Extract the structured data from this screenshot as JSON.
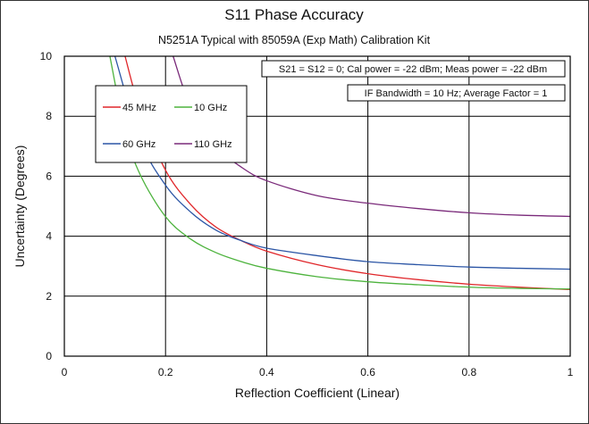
{
  "chart_data": {
    "type": "line",
    "title": "S11 Phase Accuracy",
    "subtitle": "N5251A Typical with 85059A (Exp Math) Calibration Kit",
    "xlabel": "Reflection Coefficient (Linear)",
    "ylabel": "Uncertainty (Degrees)",
    "xlim": [
      0,
      1
    ],
    "ylim": [
      0,
      10
    ],
    "x_ticks": [
      "0",
      "0.2",
      "0.4",
      "0.6",
      "0.8",
      "1"
    ],
    "y_ticks": [
      "0",
      "2",
      "4",
      "6",
      "8",
      "10"
    ],
    "grid": true,
    "annotations": [
      "S21 = S12 = 0; Cal power = -22 dBm; Meas power = -22 dBm",
      "IF Bandwidth = 10 Hz; Average Factor = 1"
    ],
    "legend_position": "top-left",
    "series": [
      {
        "name": "45 MHz",
        "color": "#e0262a",
        "x": [
          0.12,
          0.15,
          0.2,
          0.25,
          0.3,
          0.35,
          0.4,
          0.5,
          0.6,
          0.7,
          0.8,
          0.9,
          1.0
        ],
        "y": [
          10.0,
          8.2,
          6.2,
          5.05,
          4.3,
          3.85,
          3.5,
          3.05,
          2.75,
          2.55,
          2.4,
          2.3,
          2.22
        ]
      },
      {
        "name": "10 GHz",
        "color": "#4db33d",
        "x": [
          0.09,
          0.12,
          0.15,
          0.2,
          0.25,
          0.3,
          0.35,
          0.4,
          0.5,
          0.6,
          0.7,
          0.8,
          0.9,
          1.0
        ],
        "y": [
          10.0,
          7.5,
          6.05,
          4.65,
          3.9,
          3.45,
          3.15,
          2.93,
          2.65,
          2.48,
          2.38,
          2.3,
          2.26,
          2.24
        ]
      },
      {
        "name": "60 GHz",
        "color": "#2b55a5",
        "x": [
          0.1,
          0.15,
          0.2,
          0.25,
          0.3,
          0.35,
          0.4,
          0.5,
          0.6,
          0.7,
          0.8,
          0.9,
          1.0
        ],
        "y": [
          10.0,
          7.2,
          5.7,
          4.8,
          4.2,
          3.85,
          3.6,
          3.35,
          3.15,
          3.05,
          2.97,
          2.93,
          2.9
        ]
      },
      {
        "name": "110 GHz",
        "color": "#7a2a7a",
        "x": [
          0.215,
          0.25,
          0.3,
          0.35,
          0.4,
          0.5,
          0.6,
          0.7,
          0.8,
          0.9,
          1.0
        ],
        "y": [
          10.0,
          8.3,
          7.0,
          6.3,
          5.85,
          5.35,
          5.1,
          4.92,
          4.78,
          4.7,
          4.66
        ]
      }
    ]
  }
}
